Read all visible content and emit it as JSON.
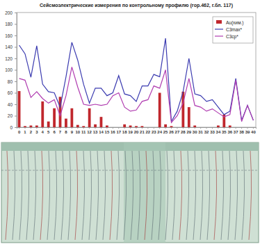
{
  "chart_data": {
    "type": "bar",
    "title": "Сейсмоэлектрические измерения по контрольному профилю (гор.462, г.бл. 117)",
    "categories": [
      0,
      1,
      2,
      3,
      4,
      5,
      6,
      7,
      8,
      9,
      10,
      11,
      12,
      13,
      14,
      15,
      16,
      17,
      18,
      19,
      20,
      21,
      22,
      23,
      24,
      25,
      26,
      27,
      28,
      29,
      30,
      31,
      32,
      33,
      34,
      35,
      36,
      37,
      38,
      39,
      40
    ],
    "series": [
      {
        "name": "Au(хим.)",
        "type": "bar",
        "color": "#c0272d",
        "values": [
          63,
          2,
          3,
          3,
          45,
          10,
          33,
          53,
          15,
          33,
          4,
          2,
          33,
          5,
          18,
          3,
          0,
          0,
          5,
          3,
          2,
          2,
          0,
          0,
          60,
          5,
          2,
          0,
          62,
          35,
          3,
          0,
          0,
          0,
          3,
          22,
          3,
          0,
          0,
          0,
          0
        ]
      },
      {
        "name": "C3max*",
        "type": "line",
        "color": "#3b3bb0",
        "values": [
          143,
          128,
          87,
          142,
          75,
          62,
          60,
          35,
          88,
          148,
          117,
          75,
          42,
          68,
          68,
          55,
          60,
          90,
          58,
          55,
          45,
          72,
          72,
          92,
          88,
          155,
          10,
          28,
          62,
          120,
          58,
          55,
          45,
          48,
          35,
          22,
          28,
          85,
          12,
          38,
          12
        ]
      },
      {
        "name": "C3ср*",
        "type": "line",
        "color": "#b03cb0",
        "values": [
          85,
          82,
          52,
          62,
          50,
          42,
          48,
          20,
          55,
          105,
          70,
          40,
          38,
          40,
          38,
          40,
          55,
          60,
          35,
          28,
          30,
          45,
          48,
          72,
          68,
          100,
          8,
          20,
          42,
          85,
          38,
          35,
          28,
          32,
          25,
          18,
          22,
          82,
          10,
          38,
          12
        ]
      }
    ],
    "ylim": [
      0,
      200
    ],
    "yticks": [
      0,
      20,
      40,
      60,
      80,
      100,
      120,
      140,
      160,
      180,
      200
    ],
    "grid": false,
    "legend": "upper right"
  }
}
